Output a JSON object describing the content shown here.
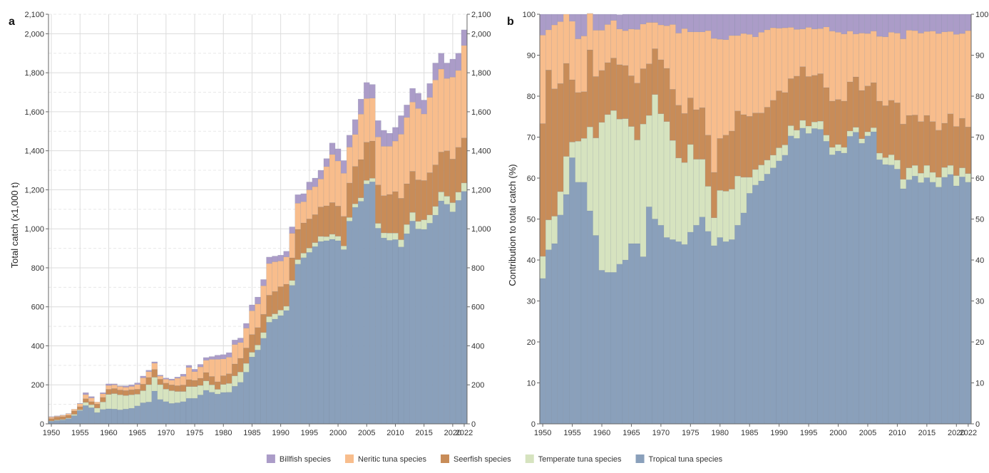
{
  "legend": {
    "items": [
      {
        "label": "Billfish species",
        "color": "#ab9cc8"
      },
      {
        "label": "Neritic tuna species",
        "color": "#f8bd8c"
      },
      {
        "label": "Seerfish species",
        "color": "#c88c58"
      },
      {
        "label": "Temperate tuna species",
        "color": "#d6e3bf"
      },
      {
        "label": "Tropical tuna species",
        "color": "#8aa0bb"
      }
    ]
  },
  "chart_data": [
    {
      "panel_label": "a",
      "type": "bar",
      "stacked": true,
      "ylabel": "Total catch (x1,000 t)",
      "xlabel": "",
      "x_ticks": [
        "1950",
        "1955",
        "1960",
        "1965",
        "1970",
        "1975",
        "1980",
        "1985",
        "1990",
        "1995",
        "2000",
        "2005",
        "2010",
        "2015",
        "2020",
        "2022"
      ],
      "y_ticks": [
        "0",
        "200",
        "400",
        "600",
        "800",
        "1,000",
        "1,200",
        "1,400",
        "1,600",
        "1,800",
        "2,000",
        "2,100"
      ],
      "y_ticks_right": [
        "0",
        "200",
        "400",
        "600",
        "800",
        "1,000",
        "1,200",
        "1,400",
        "1,600",
        "1,800",
        "2,000",
        "2,100"
      ],
      "ylim": [
        0,
        2100
      ],
      "xlim": [
        1950,
        2022
      ],
      "grid": true,
      "categories_start": 1950,
      "categories_end": 2022,
      "total": [
        37,
        41,
        45,
        53,
        75,
        105,
        160,
        140,
        112,
        160,
        205,
        205,
        195,
        195,
        200,
        210,
        245,
        275,
        318,
        250,
        235,
        230,
        240,
        255,
        300,
        280,
        305,
        340,
        345,
        352,
        355,
        365,
        430,
        440,
        515,
        610,
        650,
        740,
        855,
        860,
        865,
        885,
        1010,
        1175,
        1180,
        1240,
        1260,
        1300,
        1360,
        1440,
        1410,
        1350,
        1480,
        1560,
        1665,
        1750,
        1740,
        1555,
        1505,
        1490,
        1520,
        1580,
        1635,
        1720,
        1695,
        1660,
        1745,
        1850,
        1900,
        1850,
        1870,
        1900,
        2020
      ],
      "series": [
        {
          "name": "Tropical tuna species",
          "values": [
            13,
            17,
            20,
            27,
            42,
            68,
            94,
            83,
            58,
            74,
            77,
            76,
            72,
            76,
            80,
            92,
            108,
            112,
            168,
            125,
            114,
            105,
            108,
            114,
            131,
            131,
            148,
            172,
            162,
            153,
            161,
            162,
            193,
            213,
            265,
            343,
            379,
            439,
            521,
            537,
            555,
            581,
            710,
            819,
            852,
            879,
            909,
            935,
            939,
            946,
            939,
            893,
            1039,
            1110,
            1141,
            1230,
            1241,
            1003,
            953,
            941,
            945,
            907,
            975,
            1040,
            999,
            997,
            1029,
            1070,
            1143,
            1126,
            1087,
            1146,
            1192
          ]
        },
        {
          "name": "Temperate tuna species",
          "values": [
            2,
            3,
            3,
            3,
            7,
            4,
            16,
            15,
            23,
            38,
            74,
            79,
            77,
            69,
            69,
            60,
            62,
            89,
            71,
            76,
            64,
            65,
            58,
            52,
            60,
            60,
            49,
            48,
            38,
            24,
            41,
            45,
            53,
            53,
            45,
            24,
            25,
            29,
            29,
            27,
            28,
            22,
            25,
            23,
            23,
            22,
            20,
            26,
            21,
            26,
            23,
            19,
            19,
            18,
            18,
            18,
            18,
            25,
            26,
            37,
            33,
            37,
            47,
            44,
            39,
            49,
            42,
            45,
            46,
            41,
            47,
            42,
            43
          ]
        },
        {
          "name": "Seerfish species",
          "values": [
            12,
            15,
            14,
            14,
            17,
            16,
            19,
            16,
            21,
            24,
            26,
            26,
            25,
            26,
            26,
            26,
            34,
            37,
            40,
            28,
            31,
            30,
            30,
            33,
            36,
            32,
            37,
            43,
            43,
            39,
            45,
            50,
            61,
            70,
            79,
            91,
            90,
            94,
            110,
            115,
            120,
            113,
            116,
            155,
            155,
            150,
            144,
            151,
            158,
            163,
            155,
            152,
            177,
            192,
            196,
            196,
            191,
            197,
            191,
            198,
            213,
            213,
            209,
            211,
            213,
            202,
            217,
            213,
            205,
            233,
            224,
            230,
            231
          ]
        },
        {
          "name": "Neritic tuna species",
          "values": [
            8,
            4,
            7,
            8,
            9,
            15,
            21,
            19,
            10,
            18,
            20,
            19,
            18,
            17,
            17,
            24,
            32,
            30,
            32,
            16,
            20,
            24,
            38,
            45,
            62,
            45,
            58,
            63,
            88,
            115,
            86,
            85,
            100,
            81,
            102,
            122,
            121,
            146,
            162,
            152,
            132,
            140,
            126,
            134,
            109,
            149,
            143,
            143,
            201,
            246,
            231,
            221,
            184,
            164,
            233,
            224,
            220,
            246,
            253,
            247,
            259,
            328,
            340,
            355,
            366,
            341,
            386,
            435,
            425,
            371,
            420,
            394,
            474
          ]
        },
        {
          "name": "Billfish species",
          "values": [
            2,
            2,
            1,
            1,
            0,
            2,
            10,
            7,
            0,
            6,
            8,
            5,
            3,
            7,
            8,
            8,
            9,
            7,
            7,
            5,
            6,
            6,
            6,
            11,
            11,
            12,
            13,
            14,
            14,
            21,
            22,
            23,
            23,
            23,
            24,
            30,
            35,
            32,
            33,
            29,
            30,
            29,
            33,
            44,
            41,
            40,
            44,
            45,
            41,
            59,
            62,
            65,
            61,
            76,
            77,
            82,
            70,
            84,
            82,
            67,
            70,
            95,
            64,
            70,
            78,
            71,
            71,
            87,
            81,
            79,
            92,
            88,
            80
          ]
        }
      ]
    },
    {
      "panel_label": "b",
      "type": "bar",
      "stacked": true,
      "ylabel": "Contribution to total catch (%)",
      "xlabel": "",
      "x_ticks": [
        "1950",
        "1955",
        "1960",
        "1965",
        "1970",
        "1975",
        "1980",
        "1985",
        "1990",
        "1995",
        "2000",
        "2005",
        "2010",
        "2015",
        "2020",
        "2022"
      ],
      "y_ticks": [
        "0",
        "10",
        "20",
        "30",
        "40",
        "50",
        "60",
        "70",
        "80",
        "90",
        "100"
      ],
      "y_ticks_right": [
        "0",
        "10",
        "20",
        "30",
        "40",
        "50",
        "60",
        "70",
        "80",
        "90",
        "100"
      ],
      "ylim": [
        0,
        100
      ],
      "xlim": [
        1950,
        2022
      ],
      "grid": false,
      "categories_start": 1950,
      "categories_end": 2022,
      "series": [
        {
          "name": "Tropical tuna species",
          "values": [
            35.5,
            42.5,
            44.0,
            51.0,
            56.0,
            65.0,
            59.0,
            59.0,
            52.0,
            46.0,
            37.5,
            37.0,
            37.0,
            39.0,
            40.0,
            44.0,
            44.0,
            40.8,
            53.0,
            50.0,
            48.5,
            45.5,
            45.0,
            44.5,
            43.8,
            46.8,
            48.5,
            50.5,
            47.0,
            43.5,
            45.5,
            44.5,
            45.0,
            48.5,
            51.5,
            56.3,
            58.3,
            59.3,
            61.0,
            62.5,
            64.2,
            65.6,
            70.3,
            69.7,
            72.2,
            70.9,
            72.1,
            71.9,
            69.0,
            65.7,
            66.6,
            66.1,
            70.2,
            71.2,
            68.5,
            70.3,
            71.3,
            64.5,
            63.3,
            63.2,
            62.2,
            57.4,
            59.6,
            60.5,
            58.9,
            60.1,
            59.0,
            57.8,
            60.2,
            60.9,
            58.1,
            60.3,
            59.0
          ]
        },
        {
          "name": "Temperate tuna species",
          "values": [
            5.4,
            7.3,
            6.7,
            5.7,
            9.3,
            3.8,
            10.0,
            10.7,
            20.5,
            23.8,
            36.1,
            38.5,
            39.5,
            35.4,
            34.5,
            28.6,
            25.3,
            32.4,
            22.3,
            30.4,
            27.2,
            28.3,
            24.2,
            20.4,
            20.0,
            21.4,
            16.1,
            14.1,
            11.0,
            6.8,
            11.5,
            12.3,
            12.3,
            12.0,
            8.7,
            3.9,
            3.8,
            3.9,
            3.4,
            3.1,
            3.2,
            2.5,
            2.5,
            2.0,
            1.9,
            1.8,
            1.6,
            2.0,
            1.5,
            1.8,
            1.6,
            1.4,
            1.3,
            1.2,
            1.1,
            1.0,
            1.0,
            1.6,
            1.7,
            2.5,
            2.2,
            2.3,
            2.9,
            2.6,
            2.3,
            3.0,
            2.4,
            2.4,
            2.4,
            2.2,
            2.5,
            2.2,
            2.1
          ]
        },
        {
          "name": "Seerfish species",
          "values": [
            32.4,
            36.6,
            31.1,
            26.4,
            22.7,
            15.2,
            11.9,
            11.4,
            18.8,
            15.0,
            12.7,
            12.7,
            12.8,
            13.3,
            13.0,
            12.4,
            13.9,
            13.5,
            12.6,
            11.2,
            13.2,
            13.0,
            12.5,
            12.9,
            12.0,
            11.4,
            12.1,
            12.6,
            12.5,
            11.1,
            12.7,
            13.7,
            14.2,
            15.9,
            15.3,
            14.9,
            13.8,
            12.7,
            12.9,
            13.4,
            13.9,
            12.8,
            11.5,
            13.2,
            13.1,
            12.1,
            11.4,
            11.6,
            11.6,
            11.3,
            11.0,
            11.3,
            12.0,
            12.3,
            11.8,
            11.2,
            11.0,
            12.7,
            12.7,
            13.3,
            14.0,
            13.5,
            12.8,
            12.3,
            12.6,
            12.2,
            12.4,
            11.5,
            10.8,
            12.6,
            12.0,
            12.1,
            11.4
          ]
        },
        {
          "name": "Neritic tuna species",
          "values": [
            21.6,
            9.8,
            15.6,
            15.1,
            12.0,
            14.3,
            13.1,
            13.6,
            8.9,
            11.3,
            9.8,
            9.3,
            9.2,
            8.7,
            8.5,
            11.4,
            13.1,
            10.9,
            10.1,
            6.4,
            8.5,
            10.4,
            15.8,
            17.6,
            20.7,
            16.1,
            19.0,
            18.5,
            25.5,
            32.7,
            24.2,
            23.3,
            23.3,
            18.4,
            19.8,
            20.0,
            18.6,
            19.7,
            18.9,
            17.7,
            15.3,
            15.8,
            12.5,
            11.4,
            9.2,
            12.0,
            11.3,
            11.0,
            14.8,
            17.1,
            16.4,
            16.4,
            12.4,
            10.5,
            14.0,
            12.8,
            12.6,
            15.8,
            16.8,
            16.6,
            17.0,
            20.8,
            20.8,
            20.6,
            21.6,
            20.5,
            22.1,
            23.6,
            22.3,
            20.1,
            22.5,
            20.7,
            23.5
          ]
        },
        {
          "name": "Billfish species",
          "values": [
            5.1,
            3.8,
            2.6,
            1.8,
            0.0,
            1.7,
            6.0,
            5.3,
            0.0,
            3.9,
            3.9,
            2.5,
            1.5,
            3.5,
            4.0,
            3.6,
            3.7,
            2.4,
            2.0,
            2.0,
            2.6,
            2.8,
            2.5,
            4.6,
            3.5,
            4.3,
            4.3,
            4.3,
            4.0,
            5.9,
            6.1,
            6.2,
            5.2,
            5.2,
            4.7,
            4.9,
            5.5,
            4.4,
            3.8,
            3.3,
            3.4,
            3.3,
            3.2,
            3.7,
            3.6,
            3.2,
            3.6,
            3.5,
            3.1,
            4.1,
            4.4,
            4.8,
            4.1,
            4.8,
            4.6,
            4.7,
            4.1,
            5.4,
            5.5,
            4.4,
            4.6,
            6.0,
            3.9,
            4.0,
            4.6,
            4.2,
            4.1,
            4.7,
            4.3,
            4.2,
            4.9,
            4.7,
            4.0
          ]
        }
      ]
    }
  ]
}
